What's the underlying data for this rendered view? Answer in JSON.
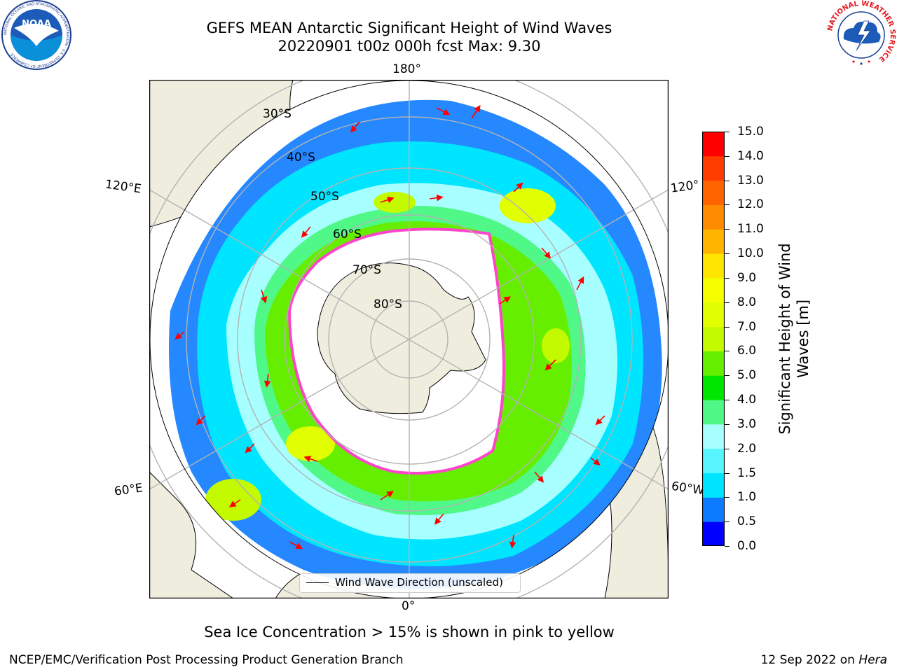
{
  "header": {
    "title_line1": "GEFS MEAN Antarctic Significant Height of Wind Waves",
    "title_line2": "20220901 t00z 000h fcst   Max: 9.30"
  },
  "logos": {
    "noaa": {
      "text": "NOAA",
      "ring_text": "NATIONAL OCEANIC AND ATMOSPHERIC ADMINISTRATION · U.S. DEPARTMENT OF COMMERCE"
    },
    "nws": {
      "ring_text": "NATIONAL WEATHER SERVICE"
    }
  },
  "map": {
    "projection": "south-polar-stereographic",
    "lon_labels": {
      "top": "180°",
      "bottom": "0°",
      "upper_left": "120°E",
      "lower_left": "60°E",
      "upper_right": "120°",
      "lower_right": "60°W"
    },
    "lat_labels": [
      "30°S",
      "40°S",
      "50°S",
      "60°S",
      "70°S",
      "80°S"
    ],
    "ocean_background": "#ffffff",
    "land_color": "#efedde",
    "grid_color": "#b3b3b3"
  },
  "legend": {
    "label": "Wind Wave Direction (unscaled)"
  },
  "colorbar": {
    "title_line1": "Significant Height of Wind",
    "title_line2": "Waves [m]",
    "ticks": [
      "15.0",
      "14.0",
      "13.0",
      "12.0",
      "11.0",
      "10.0",
      "9.0",
      "8.0",
      "7.0",
      "6.0",
      "5.0",
      "4.0",
      "3.0",
      "2.0",
      "1.5",
      "1.0",
      "0.5",
      "0.0"
    ],
    "bins": [
      {
        "from": 0.0,
        "to": 0.5,
        "color": "#0000ff"
      },
      {
        "from": 0.5,
        "to": 1.0,
        "color": "#0d7bff"
      },
      {
        "from": 1.0,
        "to": 1.5,
        "color": "#00e5ff"
      },
      {
        "from": 1.5,
        "to": 2.0,
        "color": "#57f5ff"
      },
      {
        "from": 2.0,
        "to": 3.0,
        "color": "#a8ffff"
      },
      {
        "from": 3.0,
        "to": 4.0,
        "color": "#4ff887"
      },
      {
        "from": 4.0,
        "to": 5.0,
        "color": "#00e600"
      },
      {
        "from": 5.0,
        "to": 6.0,
        "color": "#66ee00"
      },
      {
        "from": 6.0,
        "to": 7.0,
        "color": "#c3fa00"
      },
      {
        "from": 7.0,
        "to": 8.0,
        "color": "#e1ff00"
      },
      {
        "from": 8.0,
        "to": 9.0,
        "color": "#f5ff00"
      },
      {
        "from": 9.0,
        "to": 10.0,
        "color": "#ffe600"
      },
      {
        "from": 10.0,
        "to": 11.0,
        "color": "#ffb400"
      },
      {
        "from": 11.0,
        "to": 12.0,
        "color": "#ff8c00"
      },
      {
        "from": 12.0,
        "to": 13.0,
        "color": "#ff6400"
      },
      {
        "from": 13.0,
        "to": 14.0,
        "color": "#ff3c00"
      },
      {
        "from": 14.0,
        "to": 15.0,
        "color": "#ff0000"
      }
    ]
  },
  "footnote": "Sea Ice Concentration > 15% is shown in pink to yellow",
  "footer": {
    "credit": "NCEP/EMC/Verification Post Processing Product Generation Branch",
    "date_prefix": "12 Sep 2022 on ",
    "machine": "Hera"
  }
}
